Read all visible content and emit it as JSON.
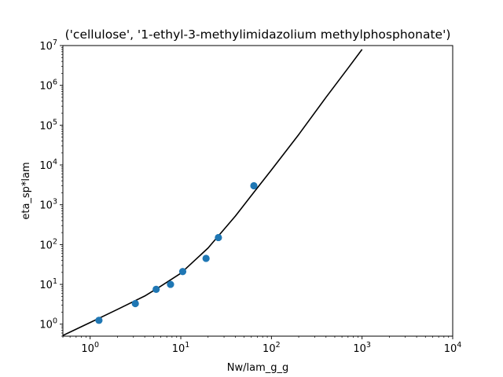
{
  "chart_data": {
    "type": "scatter",
    "title": "('cellulose', '1-ethyl-3-methylimidazolium methylphosphonate')",
    "xlabel": "Nw/lam_g_g",
    "ylabel": "eta_sp*lam",
    "xscale": "log",
    "yscale": "log",
    "xlim": [
      0.5,
      10000
    ],
    "ylim": [
      0.5,
      10000000
    ],
    "grid": false,
    "x_ticks": [
      {
        "base": "10",
        "exp": "0",
        "value": 1
      },
      {
        "base": "10",
        "exp": "1",
        "value": 10
      },
      {
        "base": "10",
        "exp": "2",
        "value": 100
      },
      {
        "base": "10",
        "exp": "3",
        "value": 1000
      },
      {
        "base": "10",
        "exp": "4",
        "value": 10000
      }
    ],
    "y_ticks": [
      {
        "base": "10",
        "exp": "0",
        "value": 1
      },
      {
        "base": "10",
        "exp": "1",
        "value": 10
      },
      {
        "base": "10",
        "exp": "2",
        "value": 100
      },
      {
        "base": "10",
        "exp": "3",
        "value": 1000
      },
      {
        "base": "10",
        "exp": "4",
        "value": 10000
      },
      {
        "base": "10",
        "exp": "5",
        "value": 100000
      },
      {
        "base": "10",
        "exp": "6",
        "value": 1000000
      },
      {
        "base": "10",
        "exp": "7",
        "value": 10000000
      }
    ],
    "series": [
      {
        "kind": "scatter",
        "color": "#1f77b4",
        "x": [
          1.25,
          3.15,
          5.35,
          7.7,
          10.5,
          19.0,
          26.0,
          64.0
        ],
        "y": [
          1.25,
          3.3,
          7.5,
          10.0,
          21.0,
          45.0,
          150.0,
          3000.0
        ]
      },
      {
        "kind": "line",
        "color": "#000000",
        "x": [
          0.5,
          1,
          2,
          4,
          6,
          10,
          20,
          40,
          60,
          100,
          200,
          400,
          700,
          1000
        ],
        "y": [
          0.52,
          1.1,
          2.35,
          5.1,
          9.0,
          19.0,
          82.0,
          520.0,
          1700.0,
          7500.0,
          58000.0,
          500000.0,
          2700000.0,
          8000000.0
        ]
      }
    ]
  }
}
